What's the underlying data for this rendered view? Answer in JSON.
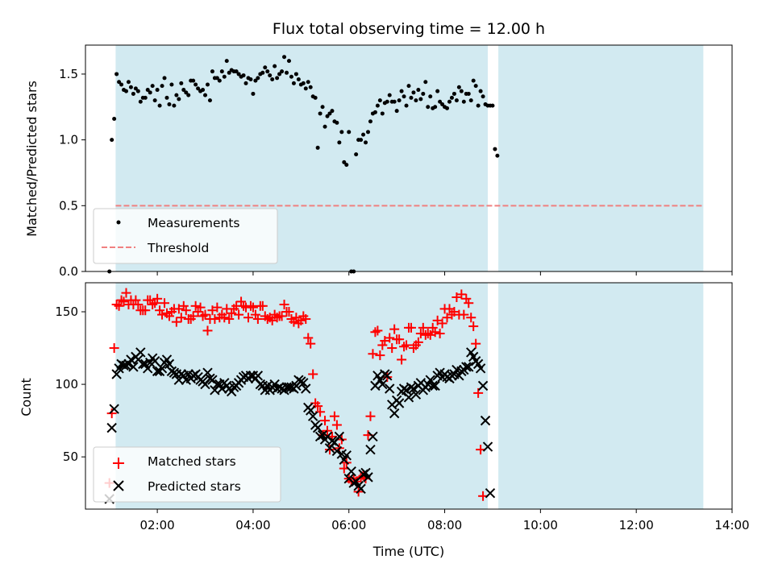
{
  "chart_data": [
    {
      "type": "scatter",
      "title": "Flux total observing time = 12.00 h",
      "xlabel": "",
      "ylabel": "Matched/Predicted stars",
      "xlim_hours": [
        0.5,
        14.0
      ],
      "ylim": [
        0,
        1.72
      ],
      "yticks": [
        0.0,
        0.5,
        1.0,
        1.5
      ],
      "ytick_labels": [
        "0.0",
        "0.5",
        "1.0",
        "1.5"
      ],
      "shaded_intervals_hours": [
        [
          1.13,
          8.9
        ],
        [
          9.12,
          13.4
        ]
      ],
      "shade_color": "#add8e6",
      "threshold": {
        "name": "Threshold",
        "value": 0.5,
        "xrange_hours": [
          1.13,
          13.4
        ],
        "color": "#f08080"
      },
      "legend": {
        "position": "lower-left",
        "entries": [
          "Measurements",
          "Threshold"
        ]
      },
      "series": [
        {
          "name": "Measurements",
          "color": "#000000",
          "marker": "dot",
          "x_start_hours": 1.0,
          "x_step_hours": 0.05,
          "values": [
            0.0,
            1.0,
            1.16,
            1.5,
            1.44,
            1.42,
            1.38,
            1.37,
            1.44,
            1.4,
            1.35,
            1.39,
            1.37,
            1.29,
            1.32,
            1.32,
            1.38,
            1.36,
            1.41,
            1.3,
            1.38,
            1.26,
            1.41,
            1.47,
            1.32,
            1.27,
            1.42,
            1.26,
            1.34,
            1.31,
            1.43,
            1.38,
            1.36,
            1.34,
            1.45,
            1.45,
            1.42,
            1.39,
            1.37,
            1.38,
            1.34,
            1.42,
            1.3,
            1.52,
            1.47,
            1.47,
            1.45,
            1.52,
            1.48,
            1.6,
            1.51,
            1.53,
            1.52,
            1.52,
            1.5,
            1.48,
            1.49,
            1.43,
            1.47,
            1.46,
            1.35,
            1.45,
            1.47,
            1.5,
            1.51,
            1.55,
            1.52,
            1.49,
            1.46,
            1.56,
            1.47,
            1.5,
            1.52,
            1.63,
            1.51,
            1.6,
            1.48,
            1.43,
            1.5,
            1.46,
            1.42,
            1.43,
            1.39,
            1.44,
            1.4,
            1.33,
            1.32,
            0.94,
            1.2,
            1.25,
            1.1,
            1.18,
            1.2,
            1.22,
            1.14,
            1.13,
            0.98,
            1.06,
            0.83,
            0.81,
            1.06,
            0.0,
            0.0,
            0.89,
            1.0,
            1.0,
            1.04,
            0.98,
            1.06,
            1.14,
            1.2,
            1.21,
            1.26,
            1.3,
            1.2,
            1.28,
            1.29,
            1.34,
            1.29,
            1.29,
            1.22,
            1.3,
            1.37,
            1.33,
            1.26,
            1.41,
            1.32,
            1.36,
            1.3,
            1.38,
            1.31,
            1.35,
            1.44,
            1.25,
            1.33,
            1.24,
            1.25,
            1.37,
            1.29,
            1.27,
            1.25,
            1.24,
            1.29,
            1.32,
            1.35,
            1.3,
            1.4,
            1.37,
            1.29,
            1.35,
            1.35,
            1.3,
            1.45,
            1.41,
            1.26,
            1.37,
            1.33,
            1.27,
            1.26,
            1.26,
            1.26,
            0.93,
            0.88
          ]
        }
      ]
    },
    {
      "type": "scatter",
      "title": "",
      "xlabel": "Time (UTC)",
      "ylabel": "Count",
      "xlim_hours": [
        0.5,
        14.0
      ],
      "ylim": [
        14,
        170
      ],
      "yticks": [
        50,
        100,
        150
      ],
      "ytick_labels": [
        "50",
        "100",
        "150"
      ],
      "xticks_hours": [
        2,
        4,
        6,
        8,
        10,
        12,
        14
      ],
      "xtick_labels": [
        "02:00",
        "04:00",
        "06:00",
        "08:00",
        "10:00",
        "12:00",
        "14:00"
      ],
      "shaded_intervals_hours": [
        [
          1.13,
          8.9
        ],
        [
          9.12,
          13.4
        ]
      ],
      "legend": {
        "position": "lower-left",
        "entries": [
          "Matched stars",
          "Predicted stars"
        ]
      },
      "series": [
        {
          "name": "Matched stars",
          "color": "#ff0000",
          "marker": "plus",
          "x_start_hours": 1.0,
          "x_step_hours": 0.05,
          "values": [
            32,
            80,
            125,
            155,
            154,
            158,
            157,
            163,
            155,
            158,
            155,
            158,
            155,
            151,
            151,
            151,
            158,
            158,
            155,
            156,
            159,
            151,
            148,
            156,
            149,
            147,
            150,
            152,
            143,
            152,
            146,
            154,
            151,
            145,
            145,
            147,
            154,
            150,
            153,
            147,
            148,
            137,
            145,
            151,
            145,
            153,
            146,
            148,
            146,
            152,
            145,
            149,
            152,
            154,
            148,
            157,
            154,
            153,
            146,
            154,
            153,
            148,
            145,
            154,
            154,
            147,
            145,
            146,
            144,
            148,
            146,
            147,
            147,
            155,
            150,
            150,
            145,
            143,
            146,
            142,
            144,
            147,
            145,
            132,
            128,
            107,
            87,
            85,
            81,
            65,
            75,
            68,
            55,
            64,
            78,
            72,
            56,
            62,
            42,
            46,
            35,
            33,
            35,
            33,
            26,
            36,
            37,
            35,
            65,
            78,
            121,
            136,
            137,
            120,
            127,
            130,
            105,
            132,
            125,
            138,
            131,
            131,
            117,
            126,
            127,
            139,
            139,
            125,
            127,
            129,
            135,
            139,
            134,
            135,
            134,
            139,
            136,
            144,
            135,
            142,
            152,
            146,
            152,
            148,
            150,
            160,
            148,
            162,
            148,
            159,
            156,
            146,
            140,
            128,
            94,
            55,
            23
          ]
        },
        {
          "name": "Predicted stars",
          "color": "#000000",
          "marker": "cross",
          "x_start_hours": 1.0,
          "x_step_hours": 0.05,
          "values": [
            21,
            70,
            83,
            107,
            111,
            114,
            113,
            113,
            114,
            117,
            112,
            119,
            117,
            122,
            114,
            114,
            111,
            115,
            118,
            116,
            109,
            109,
            111,
            115,
            117,
            114,
            109,
            108,
            107,
            103,
            107,
            106,
            103,
            107,
            104,
            106,
            107,
            105,
            103,
            102,
            100,
            108,
            104,
            103,
            96,
            100,
            100,
            97,
            101,
            99,
            97,
            95,
            98,
            99,
            101,
            103,
            105,
            106,
            104,
            106,
            106,
            104,
            106,
            100,
            99,
            96,
            99,
            96,
            98,
            100,
            97,
            98,
            97,
            96,
            98,
            98,
            98,
            97,
            99,
            103,
            102,
            101,
            97,
            84,
            82,
            78,
            72,
            70,
            64,
            65,
            62,
            64,
            56,
            61,
            60,
            54,
            64,
            52,
            48,
            51,
            35,
            40,
            32,
            33,
            30,
            28,
            38,
            39,
            36,
            55,
            64,
            99,
            106,
            103,
            100,
            107,
            106,
            97,
            86,
            80,
            89,
            87,
            95,
            97,
            96,
            91,
            98,
            97,
            93,
            99,
            101,
            96,
            98,
            100,
            103,
            99,
            99,
            106,
            108,
            105,
            107,
            105,
            104,
            106,
            107,
            110,
            106,
            109,
            110,
            112,
            112,
            122,
            119,
            116,
            114,
            111,
            99,
            75,
            57,
            25
          ]
        }
      ]
    }
  ]
}
